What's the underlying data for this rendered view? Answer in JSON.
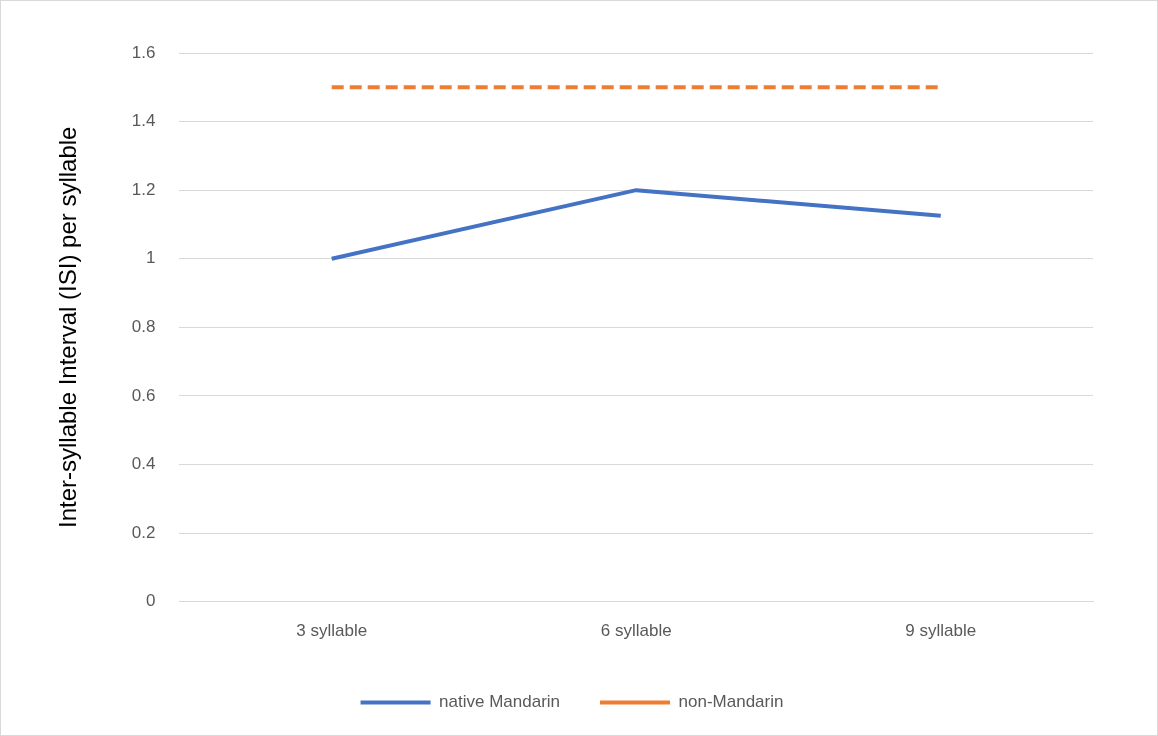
{
  "chart_data": {
    "type": "line",
    "ylabel": "Inter-syllable Interval (ISI) per syllable",
    "categories": [
      "3 syllable",
      "6 syllable",
      "9 syllable"
    ],
    "series": [
      {
        "name": "native Mandarin",
        "color": "#4472c4",
        "values": [
          1,
          1.2,
          1.125
        ],
        "line_style": "solid"
      },
      {
        "name": "non-Mandarin",
        "color": "#ed7d31",
        "values": [
          1.5,
          1.5,
          1.5
        ],
        "line_style": "dashed"
      }
    ],
    "ylim": [
      0,
      1.6
    ],
    "yticks": [
      0,
      0.2,
      0.4,
      0.6,
      0.8,
      1,
      1.2,
      1.4,
      1.6
    ],
    "grid": "y",
    "legend": "bottom",
    "marker": "none"
  }
}
